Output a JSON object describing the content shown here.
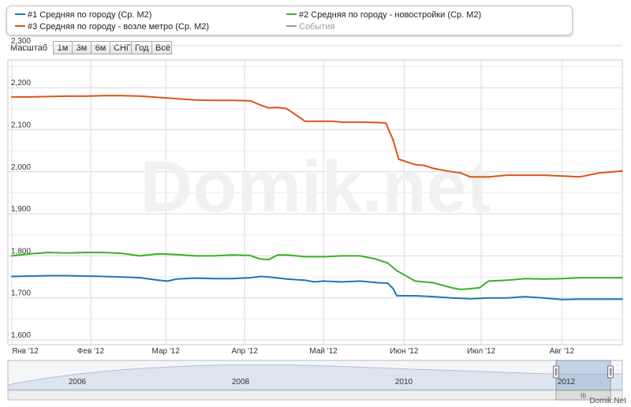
{
  "legend": {
    "items": [
      {
        "label": "#1 Средняя по городу (Ср. М2)",
        "color": "#1f77b4"
      },
      {
        "label": "#2 Средняя по городу - новостройки (Ср. М2)",
        "color": "#3cb028"
      },
      {
        "label": "#3 Средняя по городу - возле метро (Ср. М2)",
        "color": "#e0521a"
      },
      {
        "label": "События",
        "color": "#9a9a9a"
      }
    ]
  },
  "zoom": {
    "label": "Масштаб",
    "buttons": [
      "1м",
      "3м",
      "6м",
      "СНГ",
      "Год",
      "Всё"
    ]
  },
  "watermark": "Domik.net",
  "brand": "Domik.Net",
  "navigator": {
    "year_labels": [
      "2006",
      "2008",
      "2010",
      "2012"
    ],
    "scroll_handle": "III"
  },
  "chart_data": {
    "type": "line",
    "y_tick_labels": [
      "1,600",
      "1,700",
      "1,800",
      "1,900",
      "2,000",
      "2,100",
      "2,200",
      "2,300"
    ],
    "ylim": [
      1600,
      2300
    ],
    "x_tick_labels": [
      "Янв '12",
      "Фев '12",
      "Мар '12",
      "Апр '12",
      "Май '12",
      "Июн '12",
      "Июл '12",
      "Авг '12"
    ],
    "x_tick_weeks": [
      0,
      4.3,
      8.4,
      12.7,
      17,
      21.4,
      25.6,
      30
    ],
    "xlim_weeks": [
      0,
      33.3
    ],
    "grid": true,
    "series": [
      {
        "name": "#1 Средняя по городу (Ср. М2)",
        "color": "#1f77b4",
        "x_weeks": [
          0,
          1,
          2,
          3,
          4,
          5,
          6,
          7,
          8,
          8.5,
          9,
          10,
          11,
          12,
          13,
          13.6,
          14,
          15,
          16,
          16.5,
          17,
          18,
          19,
          20,
          20.5,
          20.8,
          21,
          22,
          23,
          24,
          25,
          26,
          27,
          28,
          29,
          30,
          31,
          32,
          33.3
        ],
        "values": [
          1751,
          1752,
          1753,
          1753,
          1752,
          1751,
          1750,
          1748,
          1742,
          1740,
          1745,
          1747,
          1746,
          1746,
          1748,
          1751,
          1750,
          1745,
          1742,
          1738,
          1740,
          1738,
          1740,
          1736,
          1735,
          1722,
          1705,
          1705,
          1703,
          1700,
          1698,
          1700,
          1700,
          1703,
          1700,
          1696,
          1697,
          1697,
          1697
        ]
      },
      {
        "name": "#2 Средняя по городу - новостройки (Ср. М2)",
        "color": "#3cb028",
        "x_weeks": [
          0,
          1,
          2,
          3,
          4,
          5,
          6,
          7,
          8,
          9,
          10,
          11,
          12,
          13,
          13.5,
          14,
          14.5,
          15,
          16,
          17,
          18,
          19,
          19.8,
          20.5,
          21,
          22,
          22.5,
          23,
          24,
          24.5,
          25,
          25.5,
          26,
          27,
          28,
          29,
          30,
          31,
          32,
          33.3
        ],
        "values": [
          1800,
          1805,
          1808,
          1807,
          1808,
          1808,
          1806,
          1800,
          1805,
          1803,
          1800,
          1800,
          1802,
          1801,
          1793,
          1791,
          1802,
          1802,
          1798,
          1798,
          1800,
          1800,
          1793,
          1783,
          1765,
          1740,
          1738,
          1736,
          1724,
          1720,
          1722,
          1724,
          1740,
          1742,
          1746,
          1745,
          1746,
          1748,
          1748,
          1748
        ]
      },
      {
        "name": "#3 Средняя по городу - возле метро (Ср. М2)",
        "color": "#e0521a",
        "x_weeks": [
          0,
          1,
          2,
          3,
          4,
          5,
          6,
          7,
          8,
          9,
          10,
          11,
          12,
          13,
          13.6,
          14,
          14.5,
          15,
          16,
          17,
          17.5,
          18,
          19,
          20,
          20.4,
          20.8,
          21.1,
          22,
          22.5,
          23,
          24,
          24.5,
          25,
          26,
          27,
          28,
          29,
          30,
          31,
          32,
          33.3
        ],
        "values": [
          2178,
          2178,
          2179,
          2180,
          2180,
          2181,
          2181,
          2180,
          2177,
          2174,
          2171,
          2170,
          2170,
          2169,
          2158,
          2152,
          2153,
          2150,
          2120,
          2120,
          2120,
          2118,
          2118,
          2117,
          2116,
          2075,
          2030,
          2017,
          2015,
          2008,
          2000,
          1997,
          1988,
          1988,
          1992,
          1992,
          1992,
          1990,
          1988,
          1997,
          2002
        ]
      }
    ]
  }
}
